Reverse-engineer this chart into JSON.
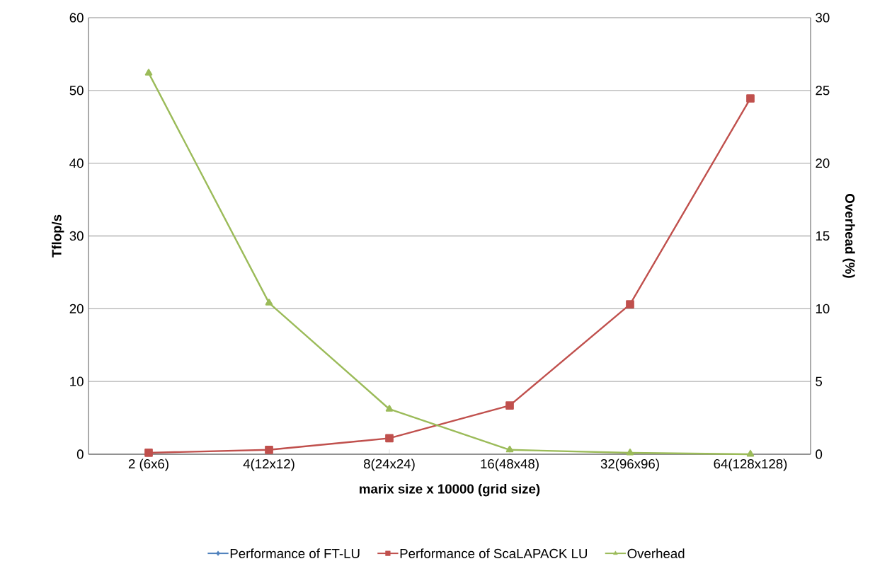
{
  "chart_data": {
    "type": "line",
    "xlabel": "marix size x 10000 (grid size)",
    "ylabel": "Tflop/s",
    "y2label": "Overhead (%)",
    "categories": [
      "2 (6x6)",
      "4(12x12)",
      "8(24x24)",
      "16(48x48)",
      "32(96x96)",
      "64(128x128)"
    ],
    "series": [
      {
        "name": "Performance of FT-LU",
        "color": "#4f81bd",
        "marker": "diamond",
        "values": [
          null,
          null,
          null,
          null,
          null,
          null
        ]
      },
      {
        "name": "Performance of ScaLAPACK LU",
        "color": "#c0504d",
        "marker": "square",
        "values": [
          0.2,
          0.6,
          2.2,
          6.7,
          20.6,
          48.9
        ]
      },
      {
        "name": "Overhead",
        "color": "#9bbb59",
        "marker": "triangle",
        "axis": "y2",
        "values": [
          26.2,
          10.4,
          3.1,
          0.3,
          0.1,
          0.0
        ]
      }
    ],
    "ylim": [
      0,
      60
    ],
    "yticks": [
      0,
      10,
      20,
      30,
      40,
      50,
      60
    ],
    "y2lim": [
      0,
      30
    ],
    "y2ticks": [
      0,
      5,
      10,
      15,
      20,
      25,
      30
    ],
    "grid": "y",
    "legend": "bottom"
  }
}
